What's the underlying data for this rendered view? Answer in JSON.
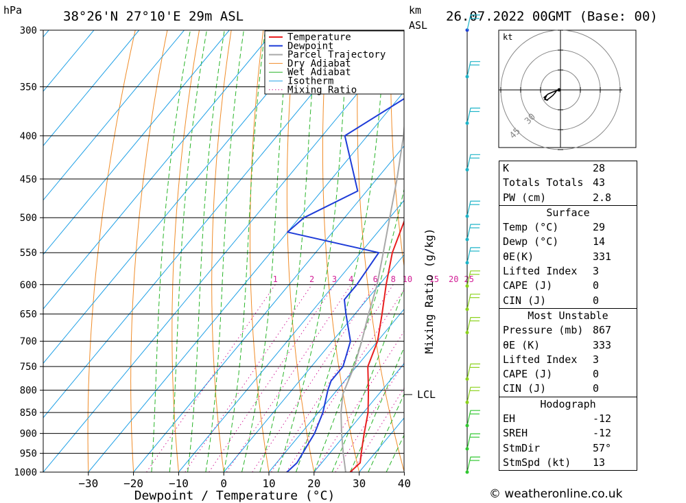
{
  "header": {
    "pressure_unit": "hPa",
    "location": "38°26'N  27°10'E  29m  ASL",
    "height_unit_line1": "km",
    "height_unit_line2": "ASL",
    "datetime": "26.07.2022  00GMT  (Base: 00)"
  },
  "chart_data": {
    "type": "line",
    "title": "",
    "xlabel": "Dewpoint / Temperature (°C)",
    "ylabel": "hPa",
    "right_axis_label": "Mixing Ratio (g/kg)",
    "x_ticks": [
      -30,
      -20,
      -10,
      0,
      10,
      20,
      30,
      40
    ],
    "pressure_levels": [
      300,
      350,
      400,
      450,
      500,
      550,
      600,
      650,
      700,
      750,
      800,
      850,
      900,
      950,
      1000
    ],
    "xlim": [
      -40,
      40
    ],
    "ylim": [
      1000,
      300
    ],
    "mixing_ratio_labels": [
      "1",
      "2",
      "3",
      "4",
      "6",
      "8",
      "10",
      "15",
      "20",
      "25"
    ],
    "mixing_ratio_values": [
      1,
      2,
      3,
      4,
      6,
      8,
      10,
      15,
      20,
      25
    ],
    "lcl_label": "LCL",
    "lcl_pressure": 808,
    "legend": [
      "Temperature",
      "Dewpoint",
      "Parcel Trajectory",
      "Dry Adiabat",
      "Wet Adiabat",
      "Isotherm",
      "Mixing Ratio"
    ],
    "legend_position": "top-right",
    "colors": {
      "temperature": "#e81e1e",
      "dewpoint": "#1e3cd8",
      "parcel": "#a8a8a8",
      "dry_adiabat": "#f08c28",
      "wet_adiabat": "#28b428",
      "isotherm": "#1ea0e6",
      "mixing_ratio": "#d21e96"
    },
    "series": [
      {
        "name": "Temperature",
        "points": [
          [
            1000,
            28
          ],
          [
            975,
            28.5
          ],
          [
            950,
            27
          ],
          [
            925,
            25.5
          ],
          [
            900,
            24
          ],
          [
            850,
            21
          ],
          [
            800,
            17
          ],
          [
            750,
            12.5
          ],
          [
            700,
            10
          ],
          [
            650,
            6
          ],
          [
            600,
            1.5
          ],
          [
            550,
            -3
          ],
          [
            500,
            -6.5
          ],
          [
            450,
            -11
          ],
          [
            400,
            -17.5
          ],
          [
            350,
            -25
          ],
          [
            300,
            -33
          ]
        ]
      },
      {
        "name": "Dewpoint",
        "points": [
          [
            1000,
            14
          ],
          [
            975,
            14.5
          ],
          [
            950,
            14
          ],
          [
            925,
            13.5
          ],
          [
            900,
            13
          ],
          [
            850,
            11
          ],
          [
            800,
            8
          ],
          [
            780,
            7
          ],
          [
            750,
            7
          ],
          [
            700,
            4
          ],
          [
            650,
            -2
          ],
          [
            625,
            -5
          ],
          [
            600,
            -5
          ],
          [
            550,
            -6
          ],
          [
            520,
            -30
          ],
          [
            500,
            -29
          ],
          [
            465,
            -22
          ],
          [
            400,
            -35
          ],
          [
            300,
            -17
          ]
        ]
      },
      {
        "name": "Parcel Trajectory",
        "points": [
          [
            1000,
            27
          ],
          [
            950,
            23
          ],
          [
            900,
            19
          ],
          [
            850,
            15
          ],
          [
            808,
            12
          ],
          [
            750,
            9.5
          ],
          [
            700,
            6.5
          ],
          [
            650,
            3
          ],
          [
            600,
            -0.5
          ],
          [
            550,
            -5
          ],
          [
            500,
            -10
          ],
          [
            450,
            -15.5
          ],
          [
            400,
            -22
          ],
          [
            350,
            -30
          ],
          [
            310,
            -37
          ]
        ]
      }
    ],
    "wind_heights_km": [
      9.5,
      8.5,
      7.5,
      6.5,
      5.5,
      5,
      4.5,
      4,
      3.5,
      3,
      2,
      1.5,
      1,
      0.5,
      0
    ]
  },
  "hodograph": {
    "unit": "kt",
    "ring_labels": [
      "30",
      "45"
    ]
  },
  "indices": [
    {
      "label": "K",
      "value": "28"
    },
    {
      "label": "Totals Totals",
      "value": "43"
    },
    {
      "label": "PW (cm)",
      "value": "2.8"
    }
  ],
  "surface": {
    "title": "Surface",
    "rows": [
      {
        "label": "Temp (°C)",
        "value": "29"
      },
      {
        "label": "Dewp (°C)",
        "value": "14"
      },
      {
        "label": "θE(K)",
        "value": "331"
      },
      {
        "label": "Lifted Index",
        "value": "3"
      },
      {
        "label": "CAPE (J)",
        "value": "0"
      },
      {
        "label": "CIN (J)",
        "value": "0"
      }
    ]
  },
  "most_unstable": {
    "title": "Most Unstable",
    "rows": [
      {
        "label": "Pressure (mb)",
        "value": "867"
      },
      {
        "label": "θE (K)",
        "value": "333"
      },
      {
        "label": "Lifted Index",
        "value": "3"
      },
      {
        "label": "CAPE (J)",
        "value": "0"
      },
      {
        "label": "CIN (J)",
        "value": "0"
      }
    ]
  },
  "hodograph_table": {
    "title": "Hodograph",
    "rows": [
      {
        "label": "EH",
        "value": "-12"
      },
      {
        "label": "SREH",
        "value": "-12"
      },
      {
        "label": "StmDir",
        "value": "57°"
      },
      {
        "label": "StmSpd (kt)",
        "value": "13"
      }
    ]
  },
  "footer": {
    "credit": "© weatheronline.co.uk"
  }
}
